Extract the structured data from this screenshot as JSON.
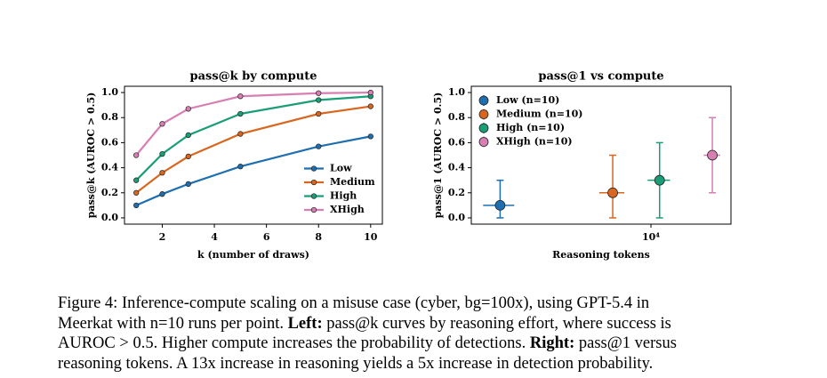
{
  "chart_data": [
    {
      "type": "line",
      "title": "pass@k by compute",
      "xlabel": "k (number of draws)",
      "ylabel": "pass@k (AUROC > 0.5)",
      "x": [
        1,
        2,
        3,
        5,
        8,
        10
      ],
      "series": [
        {
          "name": "Low",
          "color": "#1f6fb0",
          "values": [
            0.1,
            0.19,
            0.27,
            0.41,
            0.57,
            0.65
          ]
        },
        {
          "name": "Medium",
          "color": "#d9661f",
          "values": [
            0.2,
            0.36,
            0.49,
            0.67,
            0.83,
            0.89
          ]
        },
        {
          "name": "High",
          "color": "#1a9e77",
          "values": [
            0.3,
            0.51,
            0.66,
            0.83,
            0.94,
            0.97
          ]
        },
        {
          "name": "XHigh",
          "color": "#d77fb3",
          "values": [
            0.5,
            0.75,
            0.87,
            0.97,
            0.995,
            1.0
          ]
        }
      ],
      "xlim": [
        0.55,
        10.45
      ],
      "xticks": [
        2,
        4,
        6,
        8,
        10
      ],
      "ylim": [
        -0.05,
        1.05
      ],
      "yticks": [
        {
          "value": 0,
          "label": "0.0"
        },
        {
          "value": 0.2,
          "label": "0.2"
        },
        {
          "value": 0.4,
          "label": "0.4"
        },
        {
          "value": 0.6,
          "label": "0.6"
        },
        {
          "value": 0.8,
          "label": "0.8"
        },
        {
          "value": 1,
          "label": "1.0"
        }
      ],
      "legend": "lower right"
    },
    {
      "type": "errorbar",
      "title": "pass@1 vs compute",
      "xlabel": "Reasoning tokens",
      "ylabel": "pass@1 (AUROC > 0.5)",
      "xscale": "log",
      "series": [
        {
          "name": "Low (n=10)",
          "color": "#1f6fb0",
          "x": [
            1615
          ],
          "xerr": [
            300
          ],
          "values": [
            0.1
          ],
          "yerr_minus": [
            0.1
          ],
          "yerr_plus": [
            0.2
          ]
        },
        {
          "name": "Medium (n=10)",
          "color": "#d9661f",
          "x": [
            6300
          ],
          "xerr": [
            950
          ],
          "values": [
            0.2
          ],
          "yerr_minus": [
            0.2
          ],
          "yerr_plus": [
            0.3
          ]
        },
        {
          "name": "High (n=10)",
          "color": "#1a9e77",
          "x": [
            11100
          ],
          "xerr": [
            1500
          ],
          "values": [
            0.3
          ],
          "yerr_minus": [
            0.3
          ],
          "yerr_plus": [
            0.3
          ]
        },
        {
          "name": "XHigh (n=10)",
          "color": "#d77fb3",
          "x": [
            21000
          ],
          "xerr": [
            2100
          ],
          "values": [
            0.5
          ],
          "yerr_minus": [
            0.3
          ],
          "yerr_plus": [
            0.3
          ]
        }
      ],
      "xlim": [
        1140,
        26300
      ],
      "xticks": [
        {
          "value": 10000,
          "label": "10⁴"
        }
      ],
      "ylim": [
        -0.05,
        1.05
      ],
      "yticks": [
        {
          "value": 0,
          "label": "0.0"
        },
        {
          "value": 0.2,
          "label": "0.2"
        },
        {
          "value": 0.4,
          "label": "0.4"
        },
        {
          "value": 0.6,
          "label": "0.6"
        },
        {
          "value": 0.8,
          "label": "0.8"
        },
        {
          "value": 1,
          "label": "1.0"
        }
      ],
      "legend": "upper left"
    }
  ],
  "caption": {
    "lines": [
      [
        {
          "text": "Figure 4: Inference-compute scaling on a misuse case (cyber, bg=100x), using GPT-5.4 in"
        }
      ],
      [
        {
          "text": "Meerkat with n=10 runs per point. "
        },
        {
          "text": "Left:",
          "bold": true
        },
        {
          "text": " pass@k curves by reasoning effort, where success is"
        }
      ],
      [
        {
          "text": "AUROC > 0.5. Higher compute increases the probability of detections. "
        },
        {
          "text": "Right:",
          "bold": true
        },
        {
          "text": " pass@1 versus"
        }
      ],
      [
        {
          "text": "reasoning tokens. A 13x increase in reasoning yields a 5x increase in detection probability."
        }
      ]
    ]
  }
}
